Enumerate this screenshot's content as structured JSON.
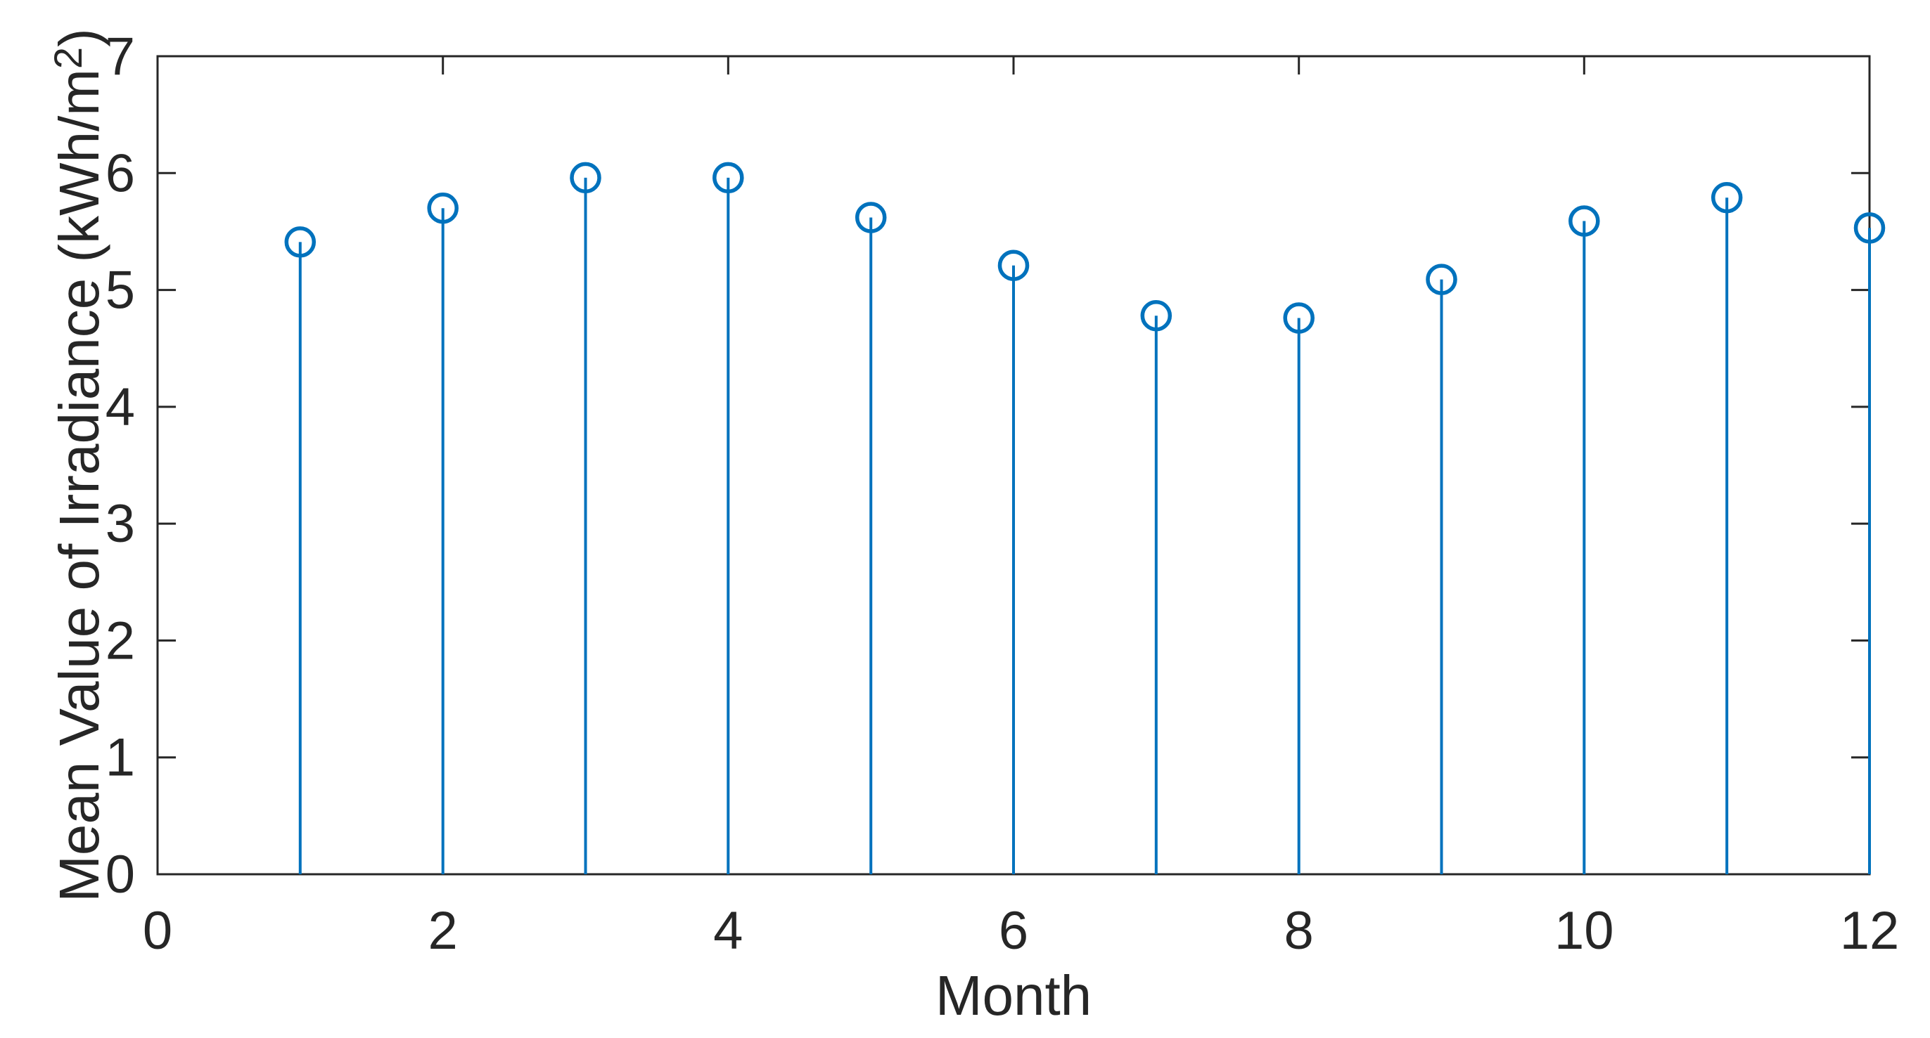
{
  "chart_data": {
    "type": "stem",
    "title": "",
    "xlabel": "Month",
    "ylabel": "Mean Value of Irradiance (kWh/m^2)",
    "ylabel_parts": {
      "main": "Mean Value of Irradiance (kWh/m",
      "sup": "2",
      "close": ")"
    },
    "x": [
      1,
      2,
      3,
      4,
      5,
      6,
      7,
      8,
      9,
      10,
      11,
      12
    ],
    "values": [
      5.41,
      5.7,
      5.96,
      5.96,
      5.62,
      5.21,
      4.78,
      4.76,
      5.09,
      5.59,
      5.79,
      5.53
    ],
    "xlim": [
      0,
      12
    ],
    "ylim": [
      0,
      7
    ],
    "xticks": [
      0,
      2,
      4,
      6,
      8,
      10,
      12
    ],
    "xtick_labels": [
      "0",
      "2",
      "4",
      "6",
      "8",
      "10",
      "12"
    ],
    "yticks": [
      0,
      1,
      2,
      3,
      4,
      5,
      6,
      7
    ],
    "ytick_labels": [
      "0",
      "1",
      "2",
      "3",
      "4",
      "5",
      "6",
      "7"
    ],
    "grid": false,
    "legend": null,
    "marker": "open-circle",
    "colors": {
      "stem": "#0072BD",
      "axis": "#262626",
      "tick_label": "#262626",
      "axis_label": "#262626",
      "background": "#ffffff"
    }
  }
}
